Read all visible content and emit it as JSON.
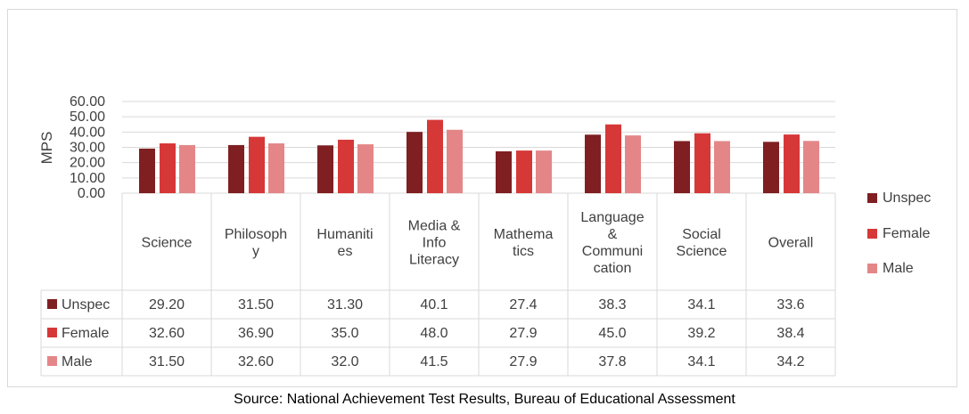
{
  "colors": {
    "Unspec": "#7f1f22",
    "Female": "#d63838",
    "Male": "#e48688",
    "grid": "#d9d9d9",
    "text": "#404040"
  },
  "chart_data": {
    "type": "bar",
    "ylabel": "MPS",
    "ylim": [
      0,
      60
    ],
    "yticks": [
      "0.00",
      "10.00",
      "20.00",
      "30.00",
      "40.00",
      "50.00",
      "60.00"
    ],
    "grid": true,
    "legend_position": "right",
    "categories": [
      "Science",
      "Philosophy",
      "Humanities",
      "Media & Info Literacy",
      "Mathematics",
      "Language & Communication",
      "Social Science",
      "Overall"
    ],
    "category_lines": [
      [
        "Science"
      ],
      [
        "Philosoph",
        "y"
      ],
      [
        "Humaniti",
        "es"
      ],
      [
        "Media &",
        "Info",
        "Literacy"
      ],
      [
        "Mathema",
        "tics"
      ],
      [
        "Language",
        "&",
        "Communi",
        "cation"
      ],
      [
        "Social",
        "Science"
      ],
      [
        "Overall"
      ]
    ],
    "series": [
      {
        "name": "Unspec",
        "values": [
          29.2,
          31.5,
          31.3,
          40.1,
          27.4,
          38.3,
          34.1,
          33.6
        ],
        "labels": [
          "29.20",
          "31.50",
          "31.30",
          "40.1",
          "27.4",
          "38.3",
          "34.1",
          "33.6"
        ]
      },
      {
        "name": "Female",
        "values": [
          32.6,
          36.9,
          35.0,
          48.0,
          27.9,
          45.0,
          39.2,
          38.4
        ],
        "labels": [
          "32.60",
          "36.90",
          "35.0",
          "48.0",
          "27.9",
          "45.0",
          "39.2",
          "38.4"
        ]
      },
      {
        "name": "Male",
        "values": [
          31.5,
          32.6,
          32.0,
          41.5,
          27.9,
          37.8,
          34.1,
          34.2
        ],
        "labels": [
          "31.50",
          "32.60",
          "32.0",
          "41.5",
          "27.9",
          "37.8",
          "34.1",
          "34.2"
        ]
      }
    ]
  },
  "source": "Source: National Achievement Test Results, Bureau of Educational Assessment"
}
